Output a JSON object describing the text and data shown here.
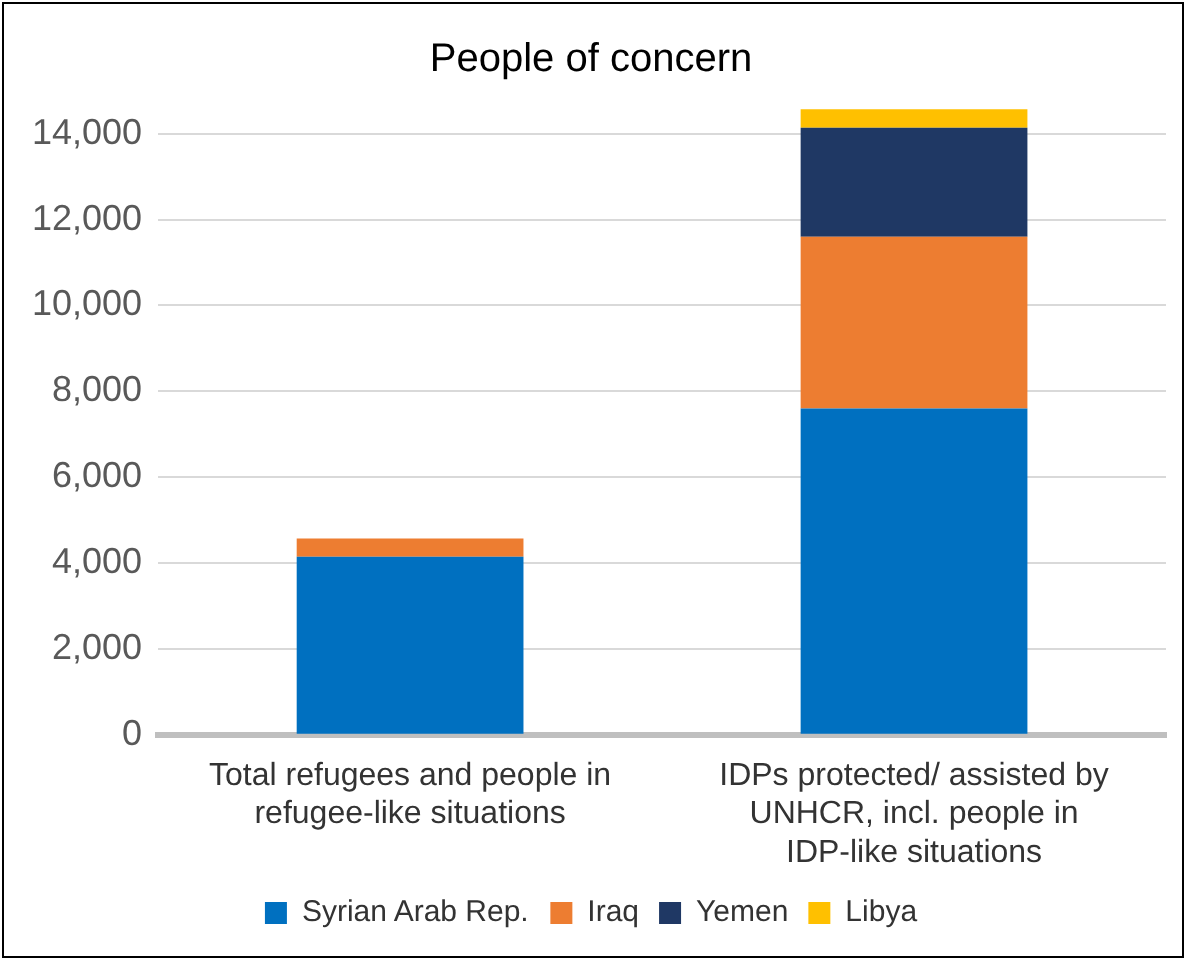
{
  "chart_data": {
    "type": "bar",
    "title": "People of concern",
    "stacked": true,
    "categories": [
      "Total refugees and people in refugee-like situations",
      "IDPs protected/ assisted by UNHCR, incl. people in IDP-like situations"
    ],
    "series": [
      {
        "name": "Syrian Arab Rep.",
        "color": "#0070c0",
        "values": [
          4150,
          7600
        ]
      },
      {
        "name": "Iraq",
        "color": "#ed7d31",
        "values": [
          420,
          4000
        ]
      },
      {
        "name": "Yemen",
        "color": "#1f3864",
        "values": [
          0,
          2540
        ]
      },
      {
        "name": "Libya",
        "color": "#ffc000",
        "values": [
          0,
          430
        ]
      }
    ],
    "ylim": [
      0,
      14600
    ],
    "yticks": [
      0,
      {
        "value": 2000,
        "label": "2,000"
      },
      {
        "value": 4000,
        "label": "4,000"
      },
      {
        "value": 6000,
        "label": "6,000"
      },
      {
        "value": 8000,
        "label": "8,000"
      },
      {
        "value": 10000,
        "label": "10,000"
      },
      {
        "value": 12000,
        "label": "12,000"
      },
      {
        "value": 14000,
        "label": "14,000"
      }
    ],
    "grid": "y",
    "legend": "bottom"
  }
}
